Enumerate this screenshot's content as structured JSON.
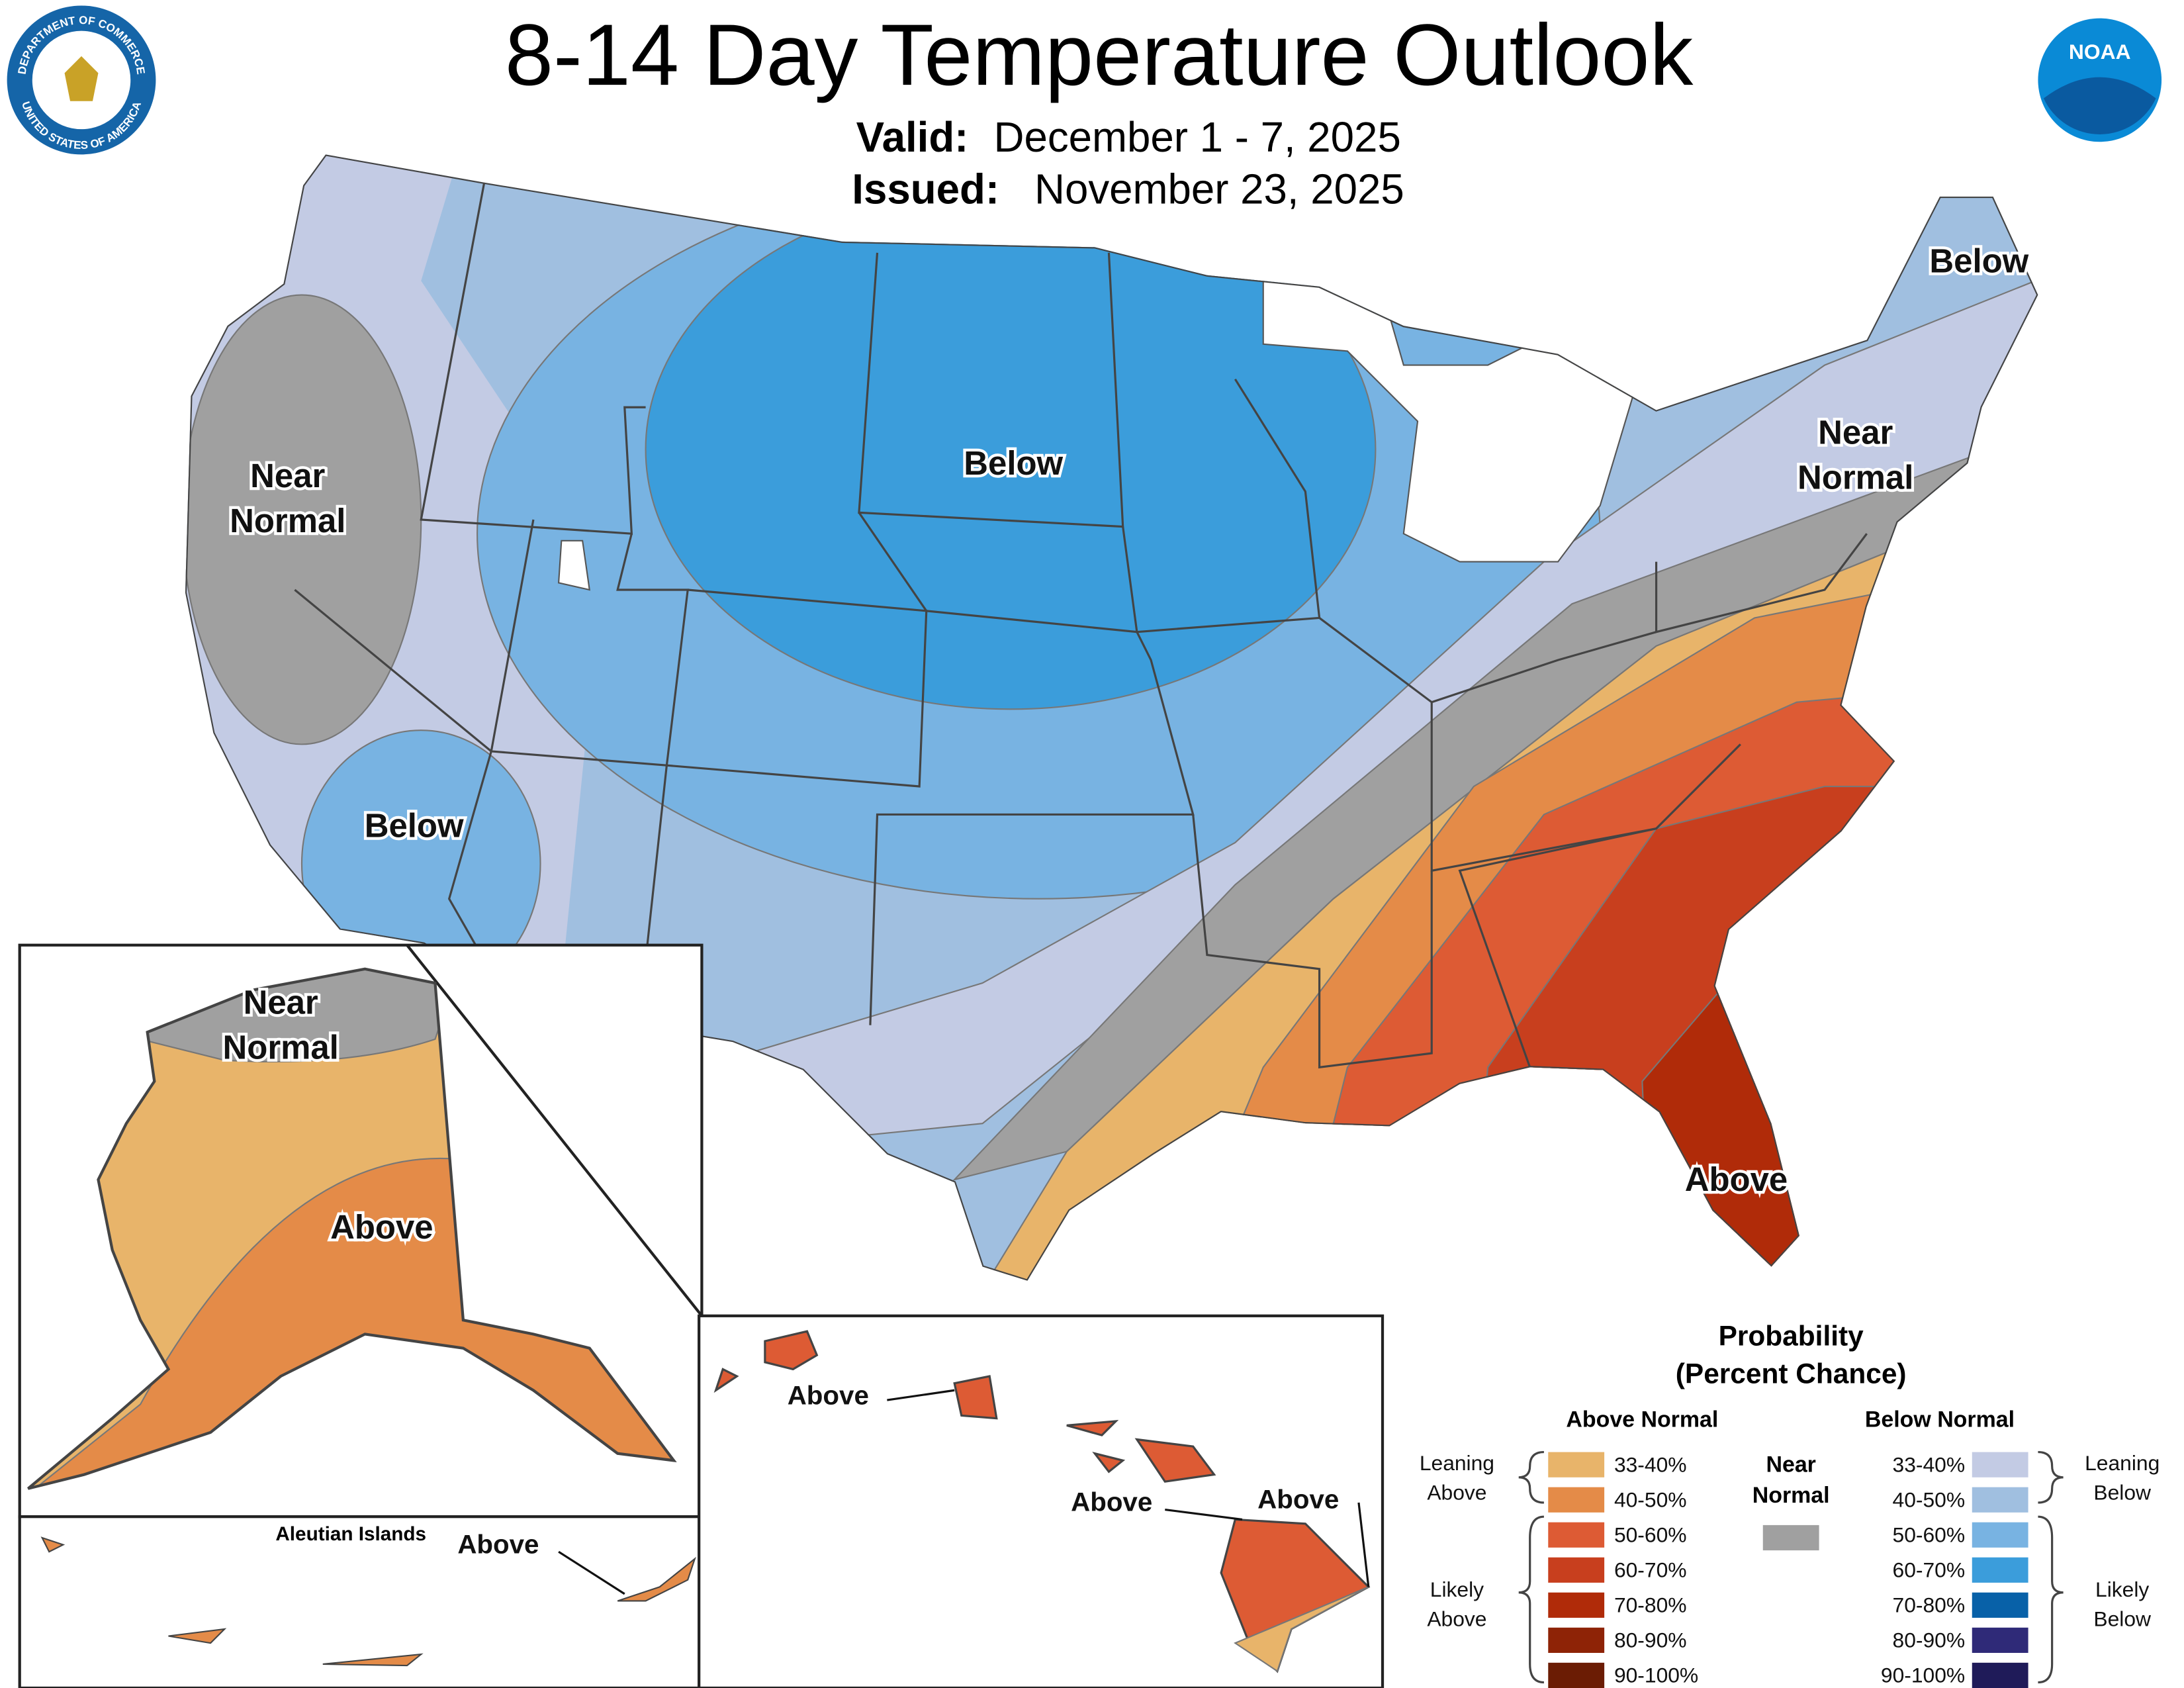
{
  "header": {
    "title": "8-14 Day Temperature Outlook",
    "valid_label": "Valid:",
    "valid": "December 1 - 7, 2025",
    "issued_label": "Issued:",
    "issued": "November 23, 2025"
  },
  "logos": {
    "seal_top": "DEPARTMENT OF COMMERCE",
    "seal_bottom": "UNITED STATES OF AMERICA",
    "noaa": "NOAA"
  },
  "map_labels": {
    "west_near": [
      "Near",
      "Normal"
    ],
    "north_below": "Below",
    "southwest_below": "Below",
    "maine_below": "Below",
    "northeast_near": [
      "Near",
      "Normal"
    ],
    "southeast_above": "Above",
    "alaska_near": [
      "Near",
      "Normal"
    ],
    "alaska_above": "Above",
    "aleutian_title": "Aleutian Islands",
    "aleutian_above": "Above",
    "hawaii_above_1": "Above",
    "hawaii_above_2": "Above",
    "hawaii_above_3": "Above"
  },
  "legend": {
    "title": "Probability",
    "subtitle": "(Percent Chance)",
    "above_title": "Above Normal",
    "below_title": "Below Normal",
    "near_title": [
      "Near",
      "Normal"
    ],
    "near_color": "#a0a0a0",
    "above": [
      {
        "label": "33-40%",
        "color": "#e8b46a"
      },
      {
        "label": "40-50%",
        "color": "#e48b48"
      },
      {
        "label": "50-60%",
        "color": "#dd5b34"
      },
      {
        "label": "60-70%",
        "color": "#c83f1e"
      },
      {
        "label": "70-80%",
        "color": "#b02b09"
      },
      {
        "label": "80-90%",
        "color": "#8e2306"
      },
      {
        "label": "90-100%",
        "color": "#6b1c04"
      }
    ],
    "below": [
      {
        "label": "33-40%",
        "color": "#c3cbe4"
      },
      {
        "label": "40-50%",
        "color": "#a0bfe0"
      },
      {
        "label": "50-60%",
        "color": "#78b3e2"
      },
      {
        "label": "60-70%",
        "color": "#3b9ddb"
      },
      {
        "label": "70-80%",
        "color": "#0861a8"
      },
      {
        "label": "80-90%",
        "color": "#2f2a78"
      },
      {
        "label": "90-100%",
        "color": "#1f1b59"
      }
    ],
    "leaning_above": [
      "Leaning",
      "Above"
    ],
    "likely_above": [
      "Likely",
      "Above"
    ],
    "leaning_below": [
      "Leaning",
      "Below"
    ],
    "likely_below": [
      "Likely",
      "Below"
    ]
  }
}
